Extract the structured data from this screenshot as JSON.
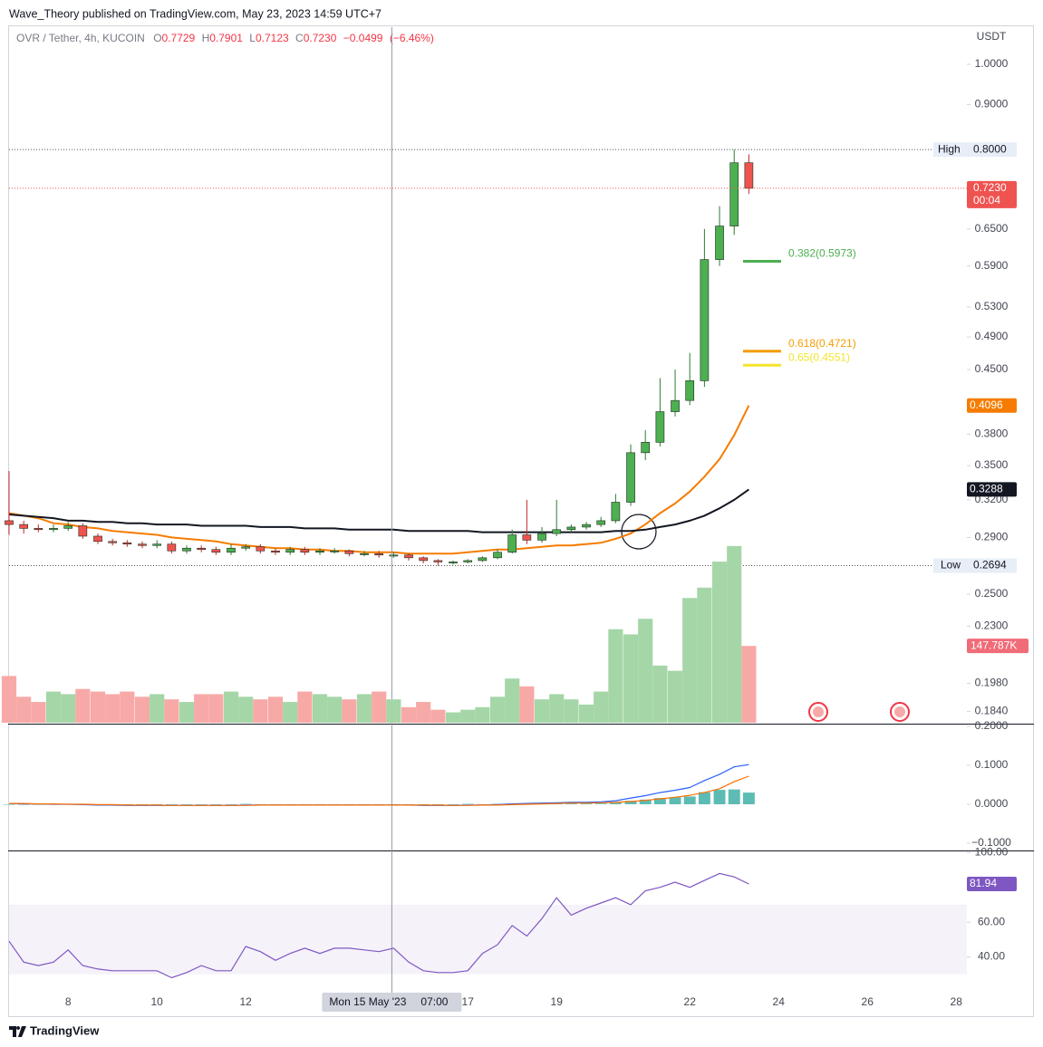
{
  "header": {
    "publisher": "Wave_Theory published on TradingView.com, May 23, 2023 14:59 UTC+7"
  },
  "footer": {
    "brand": "TradingView"
  },
  "chart_data": [
    {
      "type": "candlestick",
      "title": "OVR / Tether, 4h, KUCOIN",
      "ohlc": [
        {
          "name": "O",
          "value": 0.7729
        },
        {
          "name": "H",
          "value": 0.7901
        },
        {
          "name": "L",
          "value": 0.7123
        },
        {
          "name": "C",
          "value": {
            "value": 0.723,
            "label": "0.7230"
          }
        }
      ],
      "change": {
        "value": -0.0499,
        "label": "−0.0499"
      },
      "change_pct": {
        "value": -6.46,
        "label": "(−6.46%)"
      },
      "unit": "USDT",
      "log_scale": true,
      "grid": false,
      "up_color": "#4caf50",
      "down_color": "#ef5350",
      "x": [
        6.67,
        7,
        7.33,
        7.67,
        8,
        8.33,
        8.67,
        9,
        9.33,
        9.67,
        10,
        10.33,
        10.67,
        11,
        11.33,
        11.67,
        12,
        12.33,
        12.67,
        13,
        13.33,
        13.67,
        14,
        14.33,
        14.67,
        15,
        15.33,
        15.67,
        16,
        16.33,
        16.67,
        17,
        17.33,
        17.67,
        18,
        18.33,
        18.67,
        19,
        19.33,
        19.67,
        20,
        20.33,
        20.67,
        21,
        21.33,
        21.67,
        22,
        22.33,
        22.67,
        23,
        23.33
      ],
      "open": [
        0.303,
        0.3,
        0.297,
        0.296,
        0.297,
        0.299,
        0.291,
        0.287,
        0.286,
        0.285,
        0.284,
        0.285,
        0.28,
        0.282,
        0.281,
        0.279,
        0.282,
        0.283,
        0.28,
        0.279,
        0.281,
        0.279,
        0.28,
        0.28,
        0.278,
        0.278,
        0.277,
        0.277,
        0.275,
        0.273,
        0.272,
        0.272,
        0.273,
        0.275,
        0.279,
        0.292,
        0.288,
        0.293,
        0.296,
        0.298,
        0.3,
        0.303,
        0.318,
        0.362,
        0.372,
        0.403,
        0.415,
        0.437,
        0.6,
        0.655,
        0.7729
      ],
      "high": [
        0.345,
        0.303,
        0.3,
        0.3,
        0.302,
        0.301,
        0.293,
        0.289,
        0.288,
        0.287,
        0.288,
        0.287,
        0.284,
        0.284,
        0.283,
        0.285,
        0.285,
        0.285,
        0.282,
        0.283,
        0.283,
        0.282,
        0.282,
        0.281,
        0.28,
        0.28,
        0.279,
        0.278,
        0.276,
        0.274,
        0.273,
        0.274,
        0.276,
        0.281,
        0.296,
        0.32,
        0.298,
        0.32,
        0.3,
        0.302,
        0.306,
        0.325,
        0.37,
        0.384,
        0.44,
        0.45,
        0.47,
        0.65,
        0.69,
        0.8,
        0.7901
      ],
      "low": [
        0.292,
        0.293,
        0.294,
        0.294,
        0.295,
        0.289,
        0.285,
        0.284,
        0.283,
        0.282,
        0.282,
        0.278,
        0.278,
        0.279,
        0.277,
        0.277,
        0.28,
        0.278,
        0.277,
        0.277,
        0.277,
        0.277,
        0.278,
        0.276,
        0.276,
        0.275,
        0.275,
        0.273,
        0.271,
        0.2694,
        0.27,
        0.271,
        0.272,
        0.274,
        0.278,
        0.285,
        0.286,
        0.291,
        0.294,
        0.296,
        0.298,
        0.301,
        0.315,
        0.355,
        0.368,
        0.398,
        0.41,
        0.43,
        0.59,
        0.64,
        0.7123
      ],
      "close": [
        0.3,
        0.297,
        0.296,
        0.297,
        0.299,
        0.291,
        0.287,
        0.286,
        0.285,
        0.284,
        0.285,
        0.28,
        0.282,
        0.281,
        0.279,
        0.282,
        0.283,
        0.28,
        0.279,
        0.281,
        0.279,
        0.28,
        0.28,
        0.278,
        0.278,
        0.277,
        0.277,
        0.275,
        0.273,
        0.272,
        0.272,
        0.273,
        0.275,
        0.279,
        0.292,
        0.288,
        0.293,
        0.296,
        0.298,
        0.3,
        0.303,
        0.318,
        0.362,
        0.372,
        0.403,
        0.415,
        0.437,
        0.6,
        0.655,
        0.7729,
        0.723
      ],
      "series": [
        {
          "color": "#f57c00",
          "values": [
            0.309,
            0.307,
            0.305,
            0.301,
            0.3,
            0.298,
            0.297,
            0.295,
            0.294,
            0.293,
            0.292,
            0.29,
            0.289,
            0.288,
            0.287,
            0.285,
            0.284,
            0.283,
            0.282,
            0.282,
            0.281,
            0.281,
            0.28,
            0.28,
            0.279,
            0.279,
            0.279,
            0.278,
            0.278,
            0.278,
            0.278,
            0.279,
            0.28,
            0.281,
            0.281,
            0.282,
            0.283,
            0.284,
            0.284,
            0.285,
            0.286,
            0.289,
            0.293,
            0.3,
            0.309,
            0.317,
            0.327,
            0.34,
            0.356,
            0.379,
            0.4096
          ]
        },
        {
          "color": "#131722",
          "values": [
            0.308,
            0.307,
            0.306,
            0.305,
            0.303,
            0.303,
            0.302,
            0.302,
            0.301,
            0.301,
            0.3,
            0.3,
            0.3,
            0.299,
            0.299,
            0.299,
            0.299,
            0.298,
            0.298,
            0.298,
            0.297,
            0.297,
            0.297,
            0.296,
            0.296,
            0.296,
            0.296,
            0.295,
            0.295,
            0.295,
            0.295,
            0.295,
            0.294,
            0.294,
            0.294,
            0.294,
            0.294,
            0.294,
            0.294,
            0.294,
            0.294,
            0.295,
            0.295,
            0.296,
            0.298,
            0.3,
            0.303,
            0.307,
            0.313,
            0.32,
            0.3288
          ]
        }
      ],
      "high_mark": {
        "value": 0.8,
        "label": "0.8000",
        "text": "High"
      },
      "low_mark": {
        "value": 0.2694,
        "text": "Low"
      },
      "last": {
        "value": 0.723,
        "label": "0.7230",
        "countdown": "00:04"
      },
      "levels": [
        {
          "label": "0.382(0.5973)",
          "value": 0.5973,
          "color": "#4caf50"
        },
        {
          "label": "0.618(0.4721)",
          "value": 0.4721,
          "color": "#f59d00"
        },
        {
          "label": "0.65(0.4551)",
          "value": 0.4551,
          "color": "#f2e52b"
        }
      ],
      "crosshair": {
        "x": 15.29,
        "label": "Mon 15 May '23",
        "time": "07:00"
      },
      "xlim": [
        6.67,
        28.24
      ],
      "xticks": [
        8,
        10,
        12,
        17,
        19,
        22,
        24,
        26,
        28
      ],
      "ylim": [
        0.1786,
        1.102
      ],
      "yticks": [
        {
          "value": 1,
          "label": "1.0000"
        },
        {
          "value": 0.9,
          "label": "0.9000"
        },
        {
          "value": 0.65,
          "label": "0.6500"
        },
        {
          "value": 0.59,
          "label": "0.5900"
        },
        {
          "value": 0.53,
          "label": "0.5300"
        },
        {
          "value": 0.49,
          "label": "0.4900"
        },
        {
          "value": 0.45,
          "label": "0.4500"
        },
        {
          "value": 0.38,
          "label": "0.3800"
        },
        {
          "value": 0.35,
          "label": "0.3500"
        },
        {
          "value": 0.32,
          "label": "0.3200"
        },
        {
          "value": 0.29,
          "label": "0.2900"
        },
        {
          "value": 0.25,
          "label": "0.2500"
        },
        {
          "value": 0.23,
          "label": "0.2300"
        },
        {
          "value": 0.198,
          "label": "0.1980"
        },
        {
          "value": 0.184,
          "label": "0.1840"
        }
      ]
    },
    {
      "type": "area",
      "colors": {
        "up": "#a5d6a7",
        "down": "#f7a9a7"
      },
      "badge_color": "#f06c78",
      "ylim": [
        0,
        345
      ],
      "values": [
        90,
        50,
        40,
        60,
        55,
        65,
        60,
        55,
        60,
        50,
        55,
        45,
        40,
        55,
        55,
        60,
        50,
        45,
        50,
        40,
        60,
        55,
        50,
        45,
        55,
        60,
        45,
        30,
        40,
        25,
        20,
        25,
        30,
        50,
        85,
        70,
        45,
        55,
        45,
        35,
        60,
        180,
        170,
        200,
        110,
        100,
        240,
        260,
        310,
        340,
        147.787
      ],
      "value_labels": [
        null,
        null,
        null,
        null,
        null,
        null,
        null,
        null,
        null,
        null,
        null,
        null,
        null,
        null,
        null,
        null,
        null,
        null,
        null,
        null,
        null,
        null,
        null,
        null,
        null,
        null,
        null,
        null,
        null,
        null,
        null,
        null,
        null,
        null,
        null,
        null,
        null,
        null,
        null,
        null,
        null,
        null,
        null,
        null,
        null,
        null,
        null,
        null,
        null,
        null,
        "147.787K"
      ]
    },
    {
      "type": "line",
      "ylim": [
        -0.1163,
        0.2047
      ],
      "yticks": [
        {
          "value": 0.2,
          "label": "0.2000"
        },
        {
          "value": 0.1,
          "label": "0.1000"
        },
        {
          "value": 0,
          "label": "0.0000"
        },
        {
          "value": -0.1,
          "label": "−0.1000"
        }
      ],
      "series": [
        {
          "color": "#2962ff",
          "values": [
            0.002,
            0.001,
            0.001,
            0,
            0,
            -0.001,
            -0.002,
            -0.002,
            -0.003,
            -0.003,
            -0.003,
            -0.003,
            -0.003,
            -0.003,
            -0.003,
            -0.003,
            -0.002,
            -0.002,
            -0.002,
            -0.002,
            -0.002,
            -0.002,
            -0.002,
            -0.002,
            -0.002,
            -0.002,
            -0.002,
            -0.002,
            -0.003,
            -0.003,
            -0.003,
            -0.002,
            -0.002,
            -0.001,
            0.001,
            0.002,
            0.003,
            0.004,
            0.005,
            0.005,
            0.006,
            0.009,
            0.016,
            0.022,
            0.03,
            0.036,
            0.043,
            0.061,
            0.077,
            0.096,
            0.102
          ]
        },
        {
          "color": "#ff6d00",
          "values": [
            0.002,
            0.002,
            0.001,
            0.001,
            0,
            0,
            -0.001,
            -0.001,
            -0.002,
            -0.002,
            -0.002,
            -0.003,
            -0.003,
            -0.003,
            -0.003,
            -0.003,
            -0.003,
            -0.002,
            -0.002,
            -0.002,
            -0.002,
            -0.002,
            -0.002,
            -0.002,
            -0.002,
            -0.002,
            -0.002,
            -0.002,
            -0.002,
            -0.002,
            -0.003,
            -0.003,
            -0.002,
            -0.002,
            -0.001,
            0,
            0.001,
            0.002,
            0.003,
            0.003,
            0.004,
            0.005,
            0.007,
            0.01,
            0.014,
            0.018,
            0.023,
            0.03,
            0.04,
            0.058,
            0.072
          ]
        }
      ],
      "histogram": {
        "color": "#26a69a",
        "values": [
          0,
          -0.001,
          0,
          -0.001,
          0,
          -0.001,
          -0.001,
          -0.001,
          -0.001,
          -0.001,
          -0.001,
          0,
          0,
          0,
          0,
          0,
          0.001,
          0,
          0,
          0,
          0,
          0,
          0,
          0,
          0,
          0,
          0,
          0,
          -0.001,
          -0.001,
          0,
          0.001,
          0,
          0.001,
          0.002,
          0.002,
          0.002,
          0.002,
          0.002,
          0.002,
          0.002,
          0.004,
          0.009,
          0.012,
          0.016,
          0.018,
          0.02,
          0.031,
          0.037,
          0.038,
          0.03
        ]
      }
    },
    {
      "type": "line",
      "ylim": [
        21.5,
        100.7
      ],
      "band": [
        30,
        70
      ],
      "yticks": [
        {
          "value": 100,
          "label": "100.00"
        },
        {
          "value": 60,
          "label": "60.00"
        },
        {
          "value": 40,
          "label": "40.00"
        }
      ],
      "series": [
        {
          "color": "#7e57c2",
          "values": [
            49,
            37,
            35,
            37,
            44,
            35,
            33,
            32,
            32,
            32,
            32,
            28,
            31,
            35,
            32,
            32,
            46,
            43,
            38,
            42,
            45,
            42,
            45,
            45,
            44,
            43,
            45,
            37,
            32,
            31,
            31,
            32,
            42,
            47,
            58,
            52,
            62,
            74,
            64,
            68,
            71,
            74,
            70,
            78,
            80,
            83,
            80,
            84,
            88,
            86,
            81.94
          ]
        }
      ]
    }
  ]
}
